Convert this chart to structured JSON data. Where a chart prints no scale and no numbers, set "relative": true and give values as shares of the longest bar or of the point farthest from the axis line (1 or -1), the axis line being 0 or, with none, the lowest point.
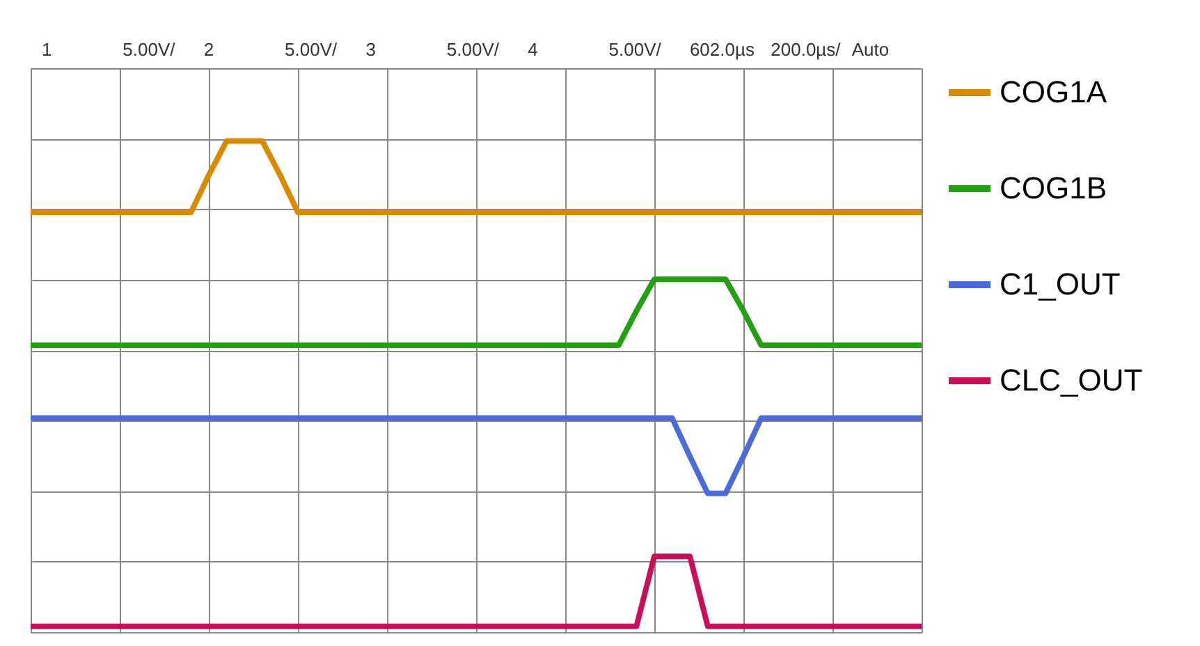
{
  "chart_data": {
    "type": "line",
    "relative": true,
    "grid": true,
    "legend": "right",
    "marker": "none",
    "line_style": "solid",
    "annotations": [
      "1",
      "5.00V/",
      "2",
      "5.00V/",
      "3",
      "5.00V/",
      "4",
      "5.00V/",
      "602.0µs",
      "200.0µs/",
      "Auto"
    ],
    "categories": [
      null,
      null,
      null,
      null,
      null,
      null,
      null,
      null,
      null,
      null,
      null,
      null,
      null,
      null,
      null,
      null,
      null,
      null,
      null,
      null,
      null,
      null,
      null,
      null,
      null,
      null,
      null,
      null,
      null,
      null,
      null,
      null,
      null,
      null,
      null,
      null,
      null,
      null,
      null,
      null,
      null,
      null,
      null,
      null,
      null,
      null,
      null,
      null,
      null,
      null,
      null
    ],
    "series": [
      {
        "name": "COG1A",
        "color": "#d98a00",
        "values": [
          0.853,
          0.853,
          0.853,
          0.853,
          0.853,
          0.853,
          0.853,
          0.853,
          0.853,
          0.853,
          0.93,
          1.0,
          1.0,
          1.0,
          0.93,
          0.853,
          0.853,
          0.853,
          0.853,
          0.853,
          0.853,
          0.853,
          0.853,
          0.853,
          0.853,
          0.853,
          0.853,
          0.853,
          0.853,
          0.853,
          0.853,
          0.853,
          0.853,
          0.853,
          0.853,
          0.853,
          0.853,
          0.853,
          0.853,
          0.853,
          0.853,
          0.853,
          0.853,
          0.853,
          0.853,
          0.853,
          0.853,
          0.853,
          0.853,
          0.853,
          0.853
        ]
      },
      {
        "name": "COG1B",
        "color": "#22a010",
        "values": [
          0.579,
          0.579,
          0.579,
          0.579,
          0.579,
          0.579,
          0.579,
          0.579,
          0.579,
          0.579,
          0.579,
          0.579,
          0.579,
          0.579,
          0.579,
          0.579,
          0.579,
          0.579,
          0.579,
          0.579,
          0.579,
          0.579,
          0.579,
          0.579,
          0.579,
          0.579,
          0.579,
          0.579,
          0.579,
          0.579,
          0.579,
          0.579,
          0.579,
          0.579,
          0.65,
          0.715,
          0.715,
          0.715,
          0.715,
          0.715,
          0.65,
          0.579,
          0.579,
          0.579,
          0.579,
          0.579,
          0.579,
          0.579,
          0.579,
          0.579,
          0.579
        ]
      },
      {
        "name": "C1_OUT",
        "color": "#4a6bd8",
        "values": [
          0.429,
          0.429,
          0.429,
          0.429,
          0.429,
          0.429,
          0.429,
          0.429,
          0.429,
          0.429,
          0.429,
          0.429,
          0.429,
          0.429,
          0.429,
          0.429,
          0.429,
          0.429,
          0.429,
          0.429,
          0.429,
          0.429,
          0.429,
          0.429,
          0.429,
          0.429,
          0.429,
          0.429,
          0.429,
          0.429,
          0.429,
          0.429,
          0.429,
          0.429,
          0.429,
          0.429,
          0.429,
          0.35,
          0.274,
          0.274,
          0.35,
          0.429,
          0.429,
          0.429,
          0.429,
          0.429,
          0.429,
          0.429,
          0.429,
          0.429,
          0.429
        ]
      },
      {
        "name": "CLC_OUT",
        "color": "#c8105a",
        "values": [
          0,
          0,
          0,
          0,
          0,
          0,
          0,
          0,
          0,
          0,
          0,
          0,
          0,
          0,
          0,
          0,
          0,
          0,
          0,
          0,
          0,
          0,
          0,
          0,
          0,
          0,
          0,
          0,
          0,
          0,
          0,
          0,
          0,
          0,
          0,
          0.144,
          0.144,
          0.144,
          0,
          0,
          0,
          0,
          0,
          0,
          0,
          0,
          0,
          0,
          0,
          0,
          0
        ]
      }
    ]
  }
}
